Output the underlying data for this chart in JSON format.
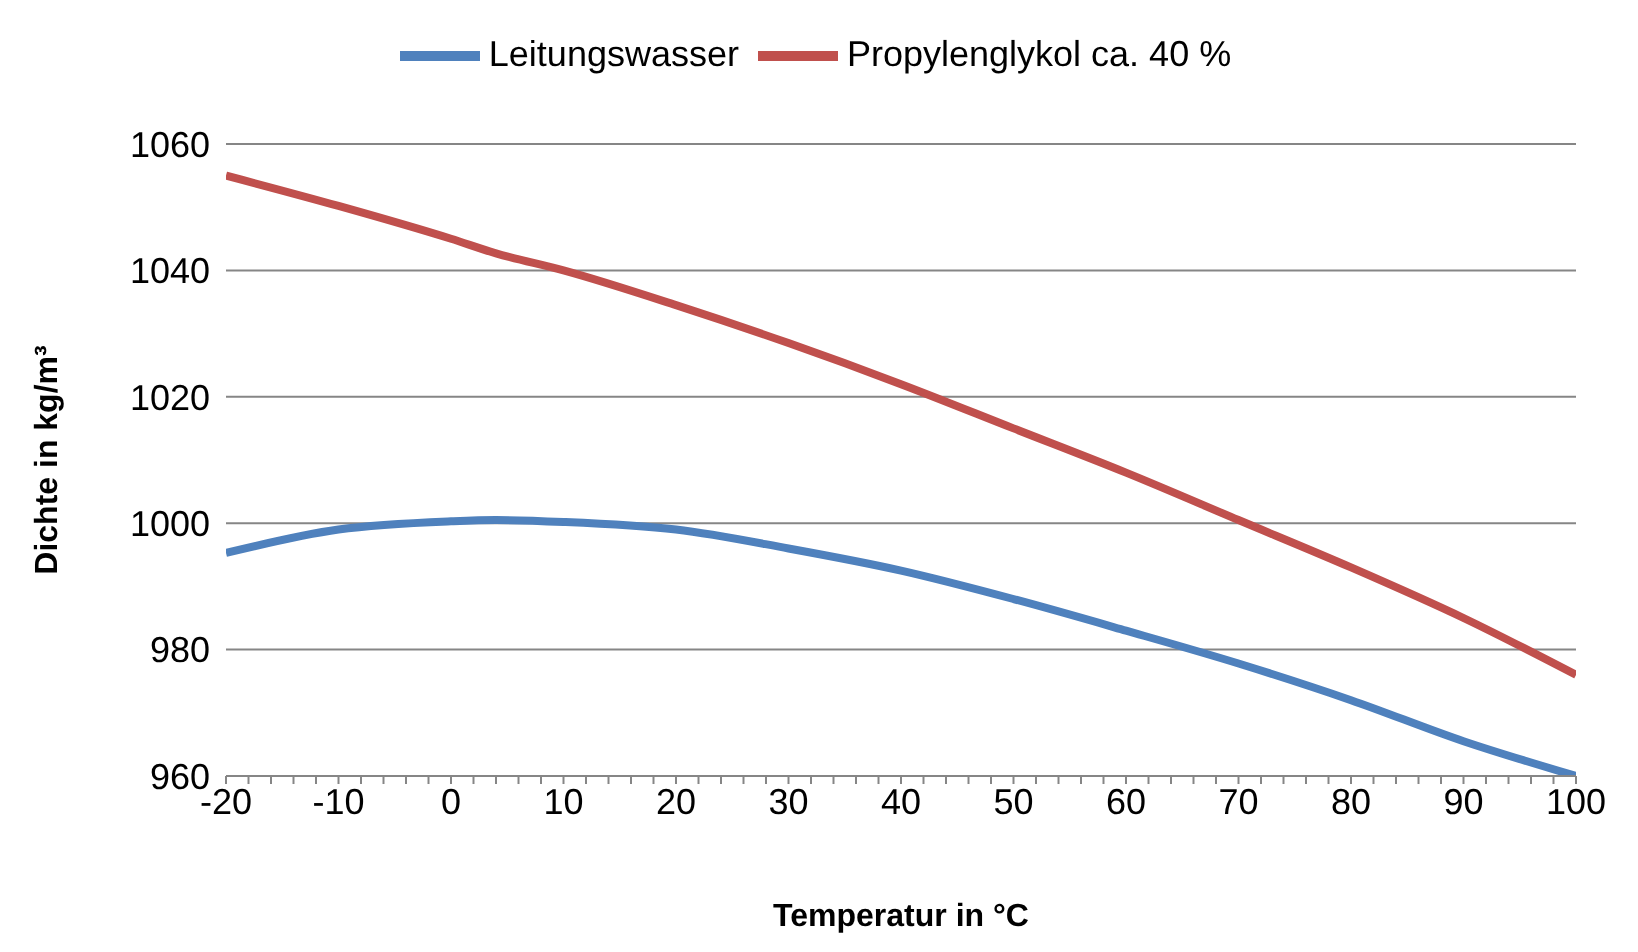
{
  "chart_data": {
    "type": "line",
    "xlabel": "Temperatur in °C",
    "ylabel": "Dichte in kg/m³",
    "x": [
      -20,
      -10,
      0,
      4,
      10,
      20,
      30,
      40,
      50,
      60,
      70,
      80,
      90,
      100
    ],
    "series": [
      {
        "name": "Leitungswasser",
        "color": "#4f81bd",
        "values": [
          995.3,
          999,
          1000.3,
          1000.5,
          1000.2,
          999,
          996,
          992.5,
          988,
          983,
          977.8,
          972,
          965.5,
          960
        ]
      },
      {
        "name": "Propylenglykol ca. 40 %",
        "color": "#c0504d",
        "values": [
          1055,
          1050.2,
          1045,
          1042.7,
          1040,
          1034.5,
          1028.5,
          1022,
          1015,
          1008,
          1000.5,
          993,
          985,
          976
        ]
      }
    ],
    "xlim": [
      -20,
      100
    ],
    "xticks": [
      -20,
      {
        "value": -18,
        "label": null
      },
      {
        "value": -16,
        "label": null
      },
      {
        "value": -14,
        "label": null
      },
      {
        "value": -12,
        "label": null
      },
      -10,
      {
        "value": -8,
        "label": null
      },
      {
        "value": -6,
        "label": null
      },
      {
        "value": -4,
        "label": null
      },
      {
        "value": -2,
        "label": null
      },
      0,
      {
        "value": 2,
        "label": null
      },
      {
        "value": 4,
        "label": null
      },
      {
        "value": 6,
        "label": null
      },
      {
        "value": 8,
        "label": null
      },
      10,
      {
        "value": 12,
        "label": null
      },
      {
        "value": 14,
        "label": null
      },
      {
        "value": 16,
        "label": null
      },
      {
        "value": 18,
        "label": null
      },
      20,
      {
        "value": 22,
        "label": null
      },
      {
        "value": 24,
        "label": null
      },
      {
        "value": 26,
        "label": null
      },
      {
        "value": 28,
        "label": null
      },
      30,
      {
        "value": 32,
        "label": null
      },
      {
        "value": 34,
        "label": null
      },
      {
        "value": 36,
        "label": null
      },
      {
        "value": 38,
        "label": null
      },
      40,
      {
        "value": 42,
        "label": null
      },
      {
        "value": 44,
        "label": null
      },
      {
        "value": 46,
        "label": null
      },
      {
        "value": 48,
        "label": null
      },
      50,
      {
        "value": 52,
        "label": null
      },
      {
        "value": 54,
        "label": null
      },
      {
        "value": 56,
        "label": null
      },
      {
        "value": 58,
        "label": null
      },
      60,
      {
        "value": 62,
        "label": null
      },
      {
        "value": 64,
        "label": null
      },
      {
        "value": 66,
        "label": null
      },
      {
        "value": 68,
        "label": null
      },
      70,
      {
        "value": 72,
        "label": null
      },
      {
        "value": 74,
        "label": null
      },
      {
        "value": 76,
        "label": null
      },
      {
        "value": 78,
        "label": null
      },
      80,
      {
        "value": 82,
        "label": null
      },
      {
        "value": 84,
        "label": null
      },
      {
        "value": 86,
        "label": null
      },
      {
        "value": 88,
        "label": null
      },
      90,
      {
        "value": 92,
        "label": null
      },
      {
        "value": 94,
        "label": null
      },
      {
        "value": 96,
        "label": null
      },
      {
        "value": 98,
        "label": null
      },
      100
    ],
    "ylim": [
      960,
      1060
    ],
    "yticks": [
      960,
      980,
      1000,
      1020,
      1040,
      1060
    ],
    "grid": "y",
    "legend": "top",
    "marker": "none",
    "line_style": "solid"
  }
}
